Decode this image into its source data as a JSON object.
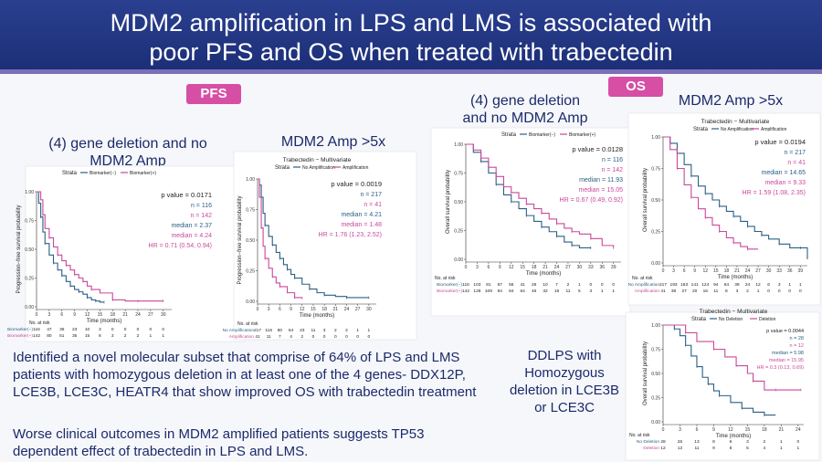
{
  "title": {
    "line1": "MDM2 amplification in LPS and LMS is associated with",
    "line2": "poor PFS and OS when treated with trabectedin"
  },
  "labels": {
    "pfs": "PFS",
    "os": "OS"
  },
  "headings": {
    "pfs_gene_line1": "(4) gene deletion and no",
    "pfs_gene_line2": "MDM2 Amp",
    "pfs_mdm2": "MDM2 Amp >5x",
    "os_gene_line1": "(4) gene deletion",
    "os_gene_line2": "and no MDM2 Amp",
    "os_mdm2": "MDM2 Amp >5x"
  },
  "body": {
    "para1_line1": "Identified a novel molecular subset that comprise of 64% of LPS and LMS",
    "para1_line2": "patients with homozygous deletion in at least one of the 4 genes- DDX12P,",
    "para1_line3": "LCE3B, LCE3C, HEATR4 that show improved OS with trabectedin treatment",
    "para2_line1": "Worse clinical outcomes in MDM2 amplified patients suggests TP53",
    "para2_line2": "dependent effect of trabectedin in LPS and LMS.",
    "ddlps_line1": "DDLPS with",
    "ddlps_line2": "Homozygous",
    "ddlps_line3": "deletion in LCE3B",
    "ddlps_line4": "or LCE3C"
  },
  "colors": {
    "blue": "#2a5f86",
    "pink": "#c9489b",
    "navy": "#1b2a6b"
  },
  "chart_data": [
    {
      "id": "pfs_gene",
      "type": "line",
      "title": "",
      "strata_label": "Strata",
      "legend": [
        "Biomarker(−)",
        "Biomarker(+)"
      ],
      "xlabel": "Time (months)",
      "ylabel": "Progression−free survival probability",
      "xticks": [
        0,
        3,
        6,
        9,
        12,
        15,
        18,
        21,
        24,
        27,
        30
      ],
      "xlim": [
        0,
        32
      ],
      "yticks": [
        "0.00",
        "0.25",
        "0.50",
        "0.75",
        "1.00"
      ],
      "ylim": [
        0,
        1
      ],
      "stats": {
        "p": "p value = 0.0171",
        "n1": "n = 116",
        "n2": "n = 142",
        "median1": "median = 2.37",
        "median2": "median = 4.24",
        "hr": "HR = 0.71 (0.54, 0.94)"
      },
      "series": [
        {
          "name": "Biomarker(−)",
          "x": [
            0,
            0.5,
            1,
            1.5,
            2,
            3,
            4,
            5,
            6,
            7,
            8,
            9,
            10,
            11,
            12,
            13,
            14,
            15,
            16
          ],
          "y": [
            1.0,
            0.9,
            0.78,
            0.65,
            0.55,
            0.45,
            0.38,
            0.32,
            0.27,
            0.22,
            0.18,
            0.15,
            0.13,
            0.11,
            0.08,
            0.06,
            0.05,
            0.04,
            0.04
          ]
        },
        {
          "name": "Biomarker(+)",
          "x": [
            0,
            1,
            1.5,
            2,
            3,
            4,
            5,
            6,
            7,
            8,
            9,
            10,
            11,
            12,
            13,
            15,
            18,
            21,
            24,
            27,
            30
          ],
          "y": [
            1.0,
            0.93,
            0.8,
            0.68,
            0.6,
            0.52,
            0.45,
            0.4,
            0.36,
            0.32,
            0.28,
            0.25,
            0.22,
            0.18,
            0.15,
            0.12,
            0.06,
            0.05,
            0.05,
            0.05,
            0.05
          ]
        }
      ],
      "risk_title": "No. at risk",
      "risk_rows": [
        {
          "label": "Biomarker(−)",
          "values": "116  47  36  23  10  3  0  0  0  0  0"
        },
        {
          "label": "Biomarker(+)",
          "values": "142  80  51  35  15  8  3  2  2  1  1"
        }
      ]
    },
    {
      "id": "pfs_mdm2",
      "type": "line",
      "title": "Trabectedin − Multivariate",
      "strata_label": "Strata",
      "legend": [
        "No Amplification",
        "Amplification"
      ],
      "xlabel": "Time (months)",
      "ylabel": "Progression−free survival probability",
      "xticks": [
        0,
        3,
        6,
        9,
        12,
        15,
        18,
        21,
        24,
        27,
        30
      ],
      "xlim": [
        0,
        32
      ],
      "yticks": [
        "0.00",
        "0.25",
        "0.50",
        "0.75",
        "1.00"
      ],
      "ylim": [
        0,
        1
      ],
      "stats": {
        "p": "p value = 0.0019",
        "n1": "n = 217",
        "n2": "n = 41",
        "median1": "median = 4.21",
        "median2": "median = 1.48",
        "hr": "HR = 1.76 (1.23, 2.52)"
      },
      "series": [
        {
          "name": "No Amplification",
          "x": [
            0,
            0.5,
            1,
            1.5,
            2,
            3,
            4,
            5,
            6,
            7,
            8,
            9,
            10,
            12,
            14,
            16,
            18,
            21,
            24,
            27,
            30
          ],
          "y": [
            1.0,
            0.95,
            0.85,
            0.72,
            0.62,
            0.53,
            0.46,
            0.4,
            0.35,
            0.3,
            0.26,
            0.22,
            0.19,
            0.14,
            0.1,
            0.07,
            0.05,
            0.04,
            0.03,
            0.03,
            0.03
          ]
        },
        {
          "name": "Amplification",
          "x": [
            0,
            0.5,
            1,
            1.5,
            2,
            3,
            4,
            5,
            6,
            8,
            10,
            12
          ],
          "y": [
            1.0,
            0.85,
            0.6,
            0.45,
            0.35,
            0.27,
            0.2,
            0.15,
            0.12,
            0.07,
            0.03,
            0.02
          ]
        }
      ],
      "risk_title": "No. at risk",
      "risk_rows": [
        {
          "label": "No Amplification",
          "values": "217  116  80  54  23  11  3  2  2  1  1"
        },
        {
          "label": "Amplification",
          "values": "41  11  7  4  2  0  0  0  0  0  0"
        }
      ]
    },
    {
      "id": "os_gene",
      "type": "line",
      "title": "",
      "strata_label": "Strata",
      "legend": [
        "Biomarker(−)",
        "Biomarker(+)"
      ],
      "xlabel": "Time (months)",
      "ylabel": "Overall survival probability",
      "xticks": [
        0,
        3,
        6,
        9,
        12,
        15,
        18,
        21,
        24,
        27,
        30,
        33,
        36,
        39
      ],
      "xlim": [
        0,
        41
      ],
      "yticks": [
        "0.00",
        "0.25",
        "0.50",
        "0.75",
        "1.00"
      ],
      "ylim": [
        0,
        1
      ],
      "stats": {
        "p": "p value = 0.0128",
        "n1": "n = 116",
        "n2": "n = 142",
        "median1": "median = 11.93",
        "median2": "median = 15.05",
        "hr": "HR = 0.67 (0.49, 0.92)"
      },
      "series": [
        {
          "name": "Biomarker(−)",
          "x": [
            0,
            2,
            4,
            6,
            8,
            10,
            12,
            14,
            16,
            18,
            20,
            22,
            24,
            26,
            28,
            30,
            33
          ],
          "y": [
            1.0,
            0.93,
            0.85,
            0.75,
            0.65,
            0.56,
            0.5,
            0.44,
            0.38,
            0.33,
            0.28,
            0.24,
            0.2,
            0.15,
            0.12,
            0.1,
            0.1
          ]
        },
        {
          "name": "Biomarker(+)",
          "x": [
            0,
            2,
            4,
            6,
            8,
            10,
            12,
            14,
            16,
            18,
            20,
            22,
            24,
            26,
            28,
            30,
            33,
            36,
            39
          ],
          "y": [
            1.0,
            0.95,
            0.88,
            0.8,
            0.72,
            0.63,
            0.58,
            0.53,
            0.48,
            0.44,
            0.4,
            0.35,
            0.31,
            0.27,
            0.24,
            0.22,
            0.18,
            0.12,
            0.1
          ]
        }
      ],
      "risk_title": "No. at risk",
      "risk_rows": [
        {
          "label": "Biomarker(−)",
          "values": "116  103  81  67  56  41  26  10  7  2  1  0  0  0"
        },
        {
          "label": "Biomarker(+)",
          "values": "142  128  109  94  84  64  46  32  19  11  5  3  1  1"
        }
      ]
    },
    {
      "id": "os_mdm2",
      "type": "line",
      "title": "Trabectedin − Multivariate",
      "strata_label": "Strata",
      "legend": [
        "No Amplification",
        "Amplification"
      ],
      "xlabel": "Time (months)",
      "ylabel": "Overall survival probability",
      "xticks": [
        0,
        3,
        6,
        9,
        12,
        15,
        18,
        21,
        24,
        27,
        30,
        33,
        36,
        39
      ],
      "xlim": [
        0,
        41
      ],
      "yticks": [
        "0.00",
        "0.25",
        "0.50",
        "0.75",
        "1.00"
      ],
      "ylim": [
        0,
        1
      ],
      "stats": {
        "p": "p value = 0.0194",
        "n1": "n = 217",
        "n2": "n = 41",
        "median1": "median = 14.65",
        "median2": "median = 9.33",
        "hr": "HR = 1.59 (1.08, 2.35)"
      },
      "series": [
        {
          "name": "No Amplification",
          "x": [
            0,
            2,
            4,
            6,
            8,
            10,
            12,
            14,
            16,
            18,
            20,
            22,
            24,
            26,
            28,
            30,
            33,
            36,
            39,
            41
          ],
          "y": [
            1.0,
            0.95,
            0.87,
            0.78,
            0.69,
            0.61,
            0.55,
            0.5,
            0.45,
            0.41,
            0.37,
            0.33,
            0.29,
            0.25,
            0.22,
            0.19,
            0.15,
            0.12,
            0.12,
            0.03
          ]
        },
        {
          "name": "Amplification",
          "x": [
            0,
            2,
            4,
            6,
            8,
            10,
            12,
            14,
            16,
            18,
            20,
            22,
            24,
            27
          ],
          "y": [
            1.0,
            0.9,
            0.75,
            0.62,
            0.52,
            0.43,
            0.36,
            0.3,
            0.25,
            0.2,
            0.16,
            0.13,
            0.11,
            0.11
          ]
        }
      ],
      "risk_title": "No. at risk",
      "risk_rows": [
        {
          "label": "No Amplification",
          "values": "217  193  163  141  124  94  64  39  24  12  6  3  1  1"
        },
        {
          "label": "Amplification",
          "values": "41  38  27  20  16  11  8  3  2  1  0  0  0  0"
        }
      ]
    },
    {
      "id": "ddlps",
      "type": "line",
      "title": "Trabectedin − Multivariate",
      "strata_label": "Strata",
      "legend": [
        "No Deletion",
        "Deletion"
      ],
      "xlabel": "Time (months)",
      "ylabel": "Overall survival probability",
      "xticks": [
        0,
        3,
        6,
        9,
        12,
        15,
        18,
        21,
        24
      ],
      "xlim": [
        0,
        25
      ],
      "yticks": [
        "0.00",
        "0.25",
        "0.50",
        "0.75",
        "1.00"
      ],
      "ylim": [
        0,
        1
      ],
      "stats": {
        "p": "p value = 0.0044",
        "n1": "n = 28",
        "n2": "n = 12",
        "median1": "median = 5.98",
        "median2": "median = 15.95",
        "hr": "HR = 0.3 (0.13, 0.69)"
      },
      "series": [
        {
          "name": "No Deletion",
          "x": [
            0,
            1,
            2,
            3,
            4,
            5,
            6,
            7,
            8,
            9,
            10,
            12,
            14,
            16,
            18,
            20
          ],
          "y": [
            1.0,
            1.0,
            0.96,
            0.89,
            0.79,
            0.68,
            0.57,
            0.46,
            0.39,
            0.32,
            0.27,
            0.2,
            0.14,
            0.1,
            0.07,
            0.07
          ]
        },
        {
          "name": "Deletion",
          "x": [
            0,
            3,
            4,
            6,
            9,
            11,
            13,
            15,
            16,
            18,
            20,
            22,
            24.5
          ],
          "y": [
            1.0,
            1.0,
            0.92,
            0.83,
            0.75,
            0.67,
            0.58,
            0.5,
            0.42,
            0.33,
            0.33,
            0.33,
            0.33
          ]
        }
      ],
      "risk_title": "No. at risk",
      "risk_rows": [
        {
          "label": "No Deletion",
          "values": "28  26  13  8  6  3  2  1  0"
        },
        {
          "label": "Deletion",
          "values": "12  12  11  9  8  5  4  1  1"
        }
      ]
    }
  ]
}
